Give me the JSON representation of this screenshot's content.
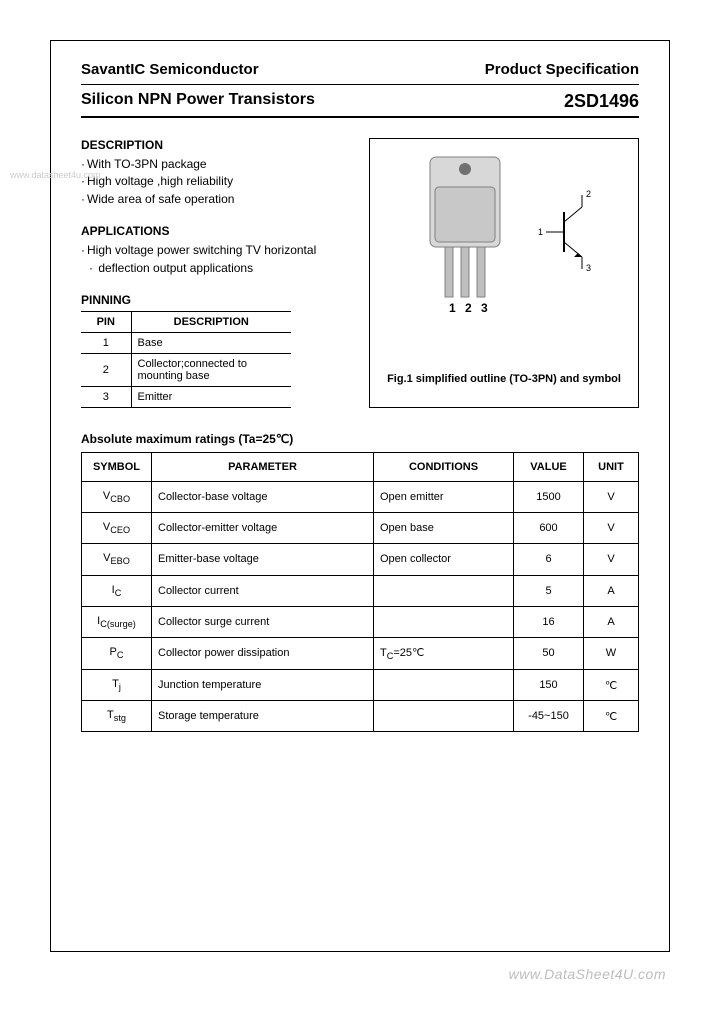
{
  "header": {
    "company": "SavantIC Semiconductor",
    "doc_type": "Product Specification"
  },
  "title": {
    "left": "Silicon NPN Power Transistors",
    "right": "2SD1496"
  },
  "description": {
    "heading": "DESCRIPTION",
    "items": [
      "With TO-3PN package",
      "High voltage ,high reliability",
      "Wide area of safe operation"
    ]
  },
  "applications": {
    "heading": "APPLICATIONS",
    "items": [
      "High voltage power switching TV horizontal",
      "  deflection output applications"
    ]
  },
  "pinning": {
    "heading": "PINNING",
    "col1": "PIN",
    "col2": "DESCRIPTION",
    "rows": [
      {
        "pin": "1",
        "desc": "Base"
      },
      {
        "pin": "2",
        "desc": "Collector;connected to mounting base"
      },
      {
        "pin": "3",
        "desc": "Emitter"
      }
    ]
  },
  "figure": {
    "pin_labels": [
      "1",
      "2",
      "3"
    ],
    "symbol_labels": {
      "base": "1",
      "collector": "2",
      "emitter": "3"
    },
    "caption": "Fig.1 simplified outline (TO-3PN) and symbol"
  },
  "ratings": {
    "heading": "Absolute maximum ratings (Ta=25℃)",
    "columns": [
      "SYMBOL",
      "PARAMETER",
      "CONDITIONS",
      "VALUE",
      "UNIT"
    ],
    "rows": [
      {
        "sym": "V<sub>CBO</sub>",
        "param": "Collector-base voltage",
        "cond": "Open emitter",
        "val": "1500",
        "unit": "V"
      },
      {
        "sym": "V<sub>CEO</sub>",
        "param": "Collector-emitter voltage",
        "cond": "Open base",
        "val": "600",
        "unit": "V"
      },
      {
        "sym": "V<sub>EBO</sub>",
        "param": "Emitter-base voltage",
        "cond": "Open collector",
        "val": "6",
        "unit": "V"
      },
      {
        "sym": "I<sub>C</sub>",
        "param": "Collector current",
        "cond": "",
        "val": "5",
        "unit": "A"
      },
      {
        "sym": "I<sub>C(surge)</sub>",
        "param": "Collector surge current",
        "cond": "",
        "val": "16",
        "unit": "A"
      },
      {
        "sym": "P<sub>C</sub>",
        "param": "Collector power dissipation",
        "cond": "T<sub>C</sub>=25℃",
        "val": "50",
        "unit": "W"
      },
      {
        "sym": "T<sub>j</sub>",
        "param": "Junction temperature",
        "cond": "",
        "val": "150",
        "unit": "℃"
      },
      {
        "sym": "T<sub>stg</sub>",
        "param": "Storage temperature",
        "cond": "",
        "val": "-45~150",
        "unit": "℃"
      }
    ],
    "col_widths": [
      "70px",
      "auto",
      "140px",
      "70px",
      "55px"
    ]
  },
  "watermarks": {
    "small": "www.datasheet4u.com",
    "footer": "www.DataSheet4U.com"
  },
  "colors": {
    "text": "#000000",
    "border": "#000000",
    "watermark": "#bdbdbd",
    "background": "#ffffff"
  }
}
